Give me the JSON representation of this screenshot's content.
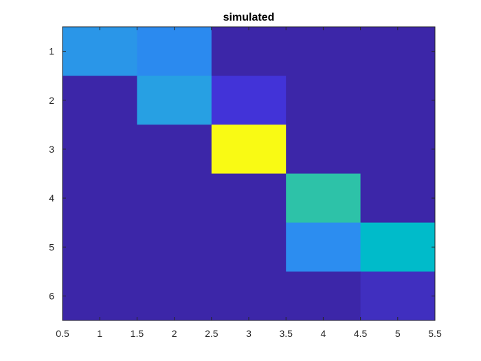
{
  "chart_data": {
    "type": "heatmap",
    "title": "simulated",
    "xlabel": "",
    "ylabel": "",
    "xlim": [
      0.5,
      5.5
    ],
    "ylim": [
      0.5,
      6.5
    ],
    "y_direction": "reverse",
    "grid": false,
    "x_ticks": [
      0.5,
      1,
      1.5,
      2,
      2.5,
      3,
      3.5,
      4,
      4.5,
      5,
      5.5
    ],
    "x_tick_labels": [
      "0.5",
      "1",
      "1.5",
      "2",
      "2.5",
      "3",
      "3.5",
      "4",
      "4.5",
      "5",
      "5.5"
    ],
    "y_ticks": [
      1,
      2,
      3,
      4,
      5,
      6
    ],
    "y_tick_labels": [
      "1",
      "2",
      "3",
      "4",
      "5",
      "6"
    ],
    "columns": [
      1,
      2,
      3,
      4,
      5
    ],
    "rows": [
      1,
      2,
      3,
      4,
      5,
      6
    ],
    "cell_colors": [
      [
        "#2a96e8",
        "#2b8aef",
        "#3c26a8",
        "#3c26a8",
        "#3c26a8"
      ],
      [
        "#3c26a8",
        "#27a0e3",
        "#4233d8",
        "#3c26a8",
        "#3c26a8"
      ],
      [
        "#3c26a8",
        "#3c26a8",
        "#f9fa14",
        "#3c26a8",
        "#3c26a8"
      ],
      [
        "#3c26a8",
        "#3c26a8",
        "#3c26a8",
        "#2dc2a8",
        "#3c26a8"
      ],
      [
        "#3c26a8",
        "#3c26a8",
        "#3c26a8",
        "#2c8df0",
        "#00bbca"
      ],
      [
        "#3c26a8",
        "#3c26a8",
        "#3c26a8",
        "#3c26a8",
        "#402fbf"
      ]
    ]
  }
}
